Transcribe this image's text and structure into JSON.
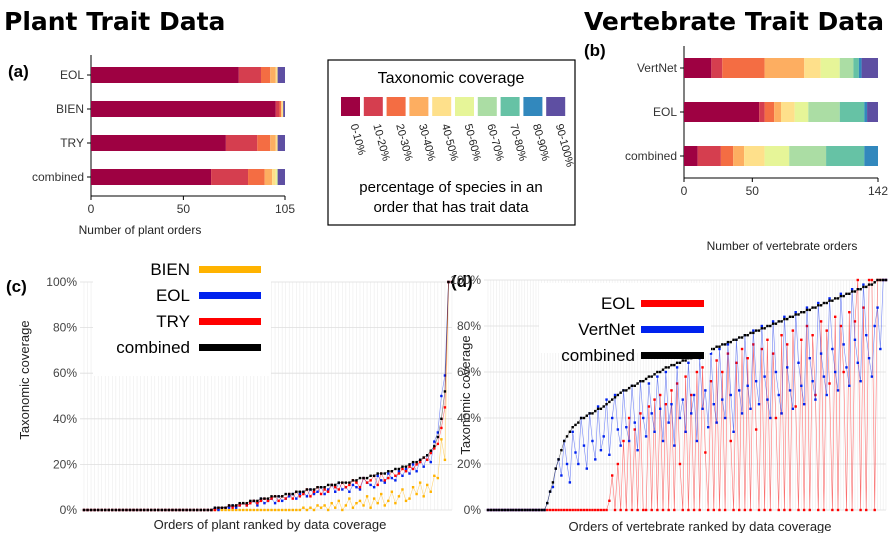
{
  "headings": {
    "plant": "Plant Trait Data",
    "vertebrate": "Vertebrate Trait Data"
  },
  "colors": {
    "scale": [
      "#9e0142",
      "#d53e4f",
      "#f46d43",
      "#fdae61",
      "#fee08b",
      "#e6f598",
      "#abdda4",
      "#66c2a5",
      "#3288bd",
      "#5e4fa2"
    ],
    "BIEN": "#ffb300",
    "EOL": "#ff0000",
    "EOL_d": "#ff0000",
    "EOL_c": "#0022ee",
    "TRY": "#ff0000",
    "VertNet": "#0022ee",
    "combined": "#000000"
  },
  "legend_scale": {
    "title": "Taxonomic coverage",
    "labels": [
      "0-10%",
      "10-20%",
      "20-30%",
      "30-40%",
      "40-50%",
      "50-60%",
      "60-70%",
      "70-80%",
      "80-90%",
      "90-100%"
    ],
    "caption_line1": "percentage of species in an",
    "caption_line2": "order that has trait data"
  },
  "chart_data": [
    {
      "panel": "(a)",
      "type": "bar",
      "orientation": "horizontal",
      "stacked": true,
      "categories": [
        "EOL",
        "BIEN",
        "TRY",
        "combined"
      ],
      "xlabel": "Number of plant orders",
      "xlim": [
        0,
        105
      ],
      "xticks": [
        0,
        50,
        105
      ],
      "segments": [
        [
          80,
          12,
          5,
          3,
          1,
          0,
          0,
          0,
          0,
          4
        ],
        [
          100,
          2,
          1,
          0,
          1,
          0,
          0,
          0,
          0,
          1
        ],
        [
          73,
          17,
          7,
          3,
          1,
          0,
          0,
          0,
          0,
          4
        ],
        [
          65,
          20,
          9,
          4,
          2,
          1,
          0,
          0,
          0,
          4
        ]
      ]
    },
    {
      "panel": "(b)",
      "type": "bar",
      "orientation": "horizontal",
      "stacked": true,
      "categories": [
        "VertNet",
        "EOL",
        "combined"
      ],
      "xlabel": "Number of vertebrate orders",
      "xlim": [
        0,
        142
      ],
      "xticks": [
        0,
        50,
        142
      ],
      "segments": [
        [
          20,
          8,
          31,
          29,
          12,
          14,
          10,
          4,
          2,
          12
        ],
        [
          55,
          4,
          7,
          5,
          10,
          10,
          23,
          18,
          2,
          8
        ],
        [
          10,
          17,
          9,
          8,
          15,
          18,
          27,
          28,
          10,
          0
        ]
      ]
    },
    {
      "panel": "(c)",
      "type": "scatter",
      "connected": true,
      "xlabel": "Orders of plant ranked by data coverage",
      "ylabel": "Taxonomic coverage",
      "ylim": [
        0,
        100
      ],
      "yticks": [
        "0%",
        "20%",
        "40%",
        "60%",
        "80%",
        "100%"
      ],
      "n_orders": 105,
      "series": [
        {
          "name": "BIEN",
          "color_key": "BIEN",
          "values": [
            0,
            0,
            0,
            0,
            0,
            0,
            0,
            0,
            0,
            0,
            0,
            0,
            0,
            0,
            0,
            0,
            0,
            0,
            0,
            0,
            0,
            0,
            0,
            0,
            0,
            0,
            0,
            0,
            0,
            0,
            0,
            0,
            0,
            0,
            0,
            0,
            0,
            0,
            0,
            0,
            0,
            0,
            0,
            0,
            0,
            0,
            0,
            0,
            0,
            0,
            0,
            0,
            0,
            0,
            0,
            0,
            0,
            0,
            0,
            0,
            0,
            0,
            1,
            0,
            1,
            0,
            2,
            1,
            2,
            0,
            3,
            1,
            4,
            0,
            2,
            5,
            1,
            3,
            4,
            2,
            6,
            1,
            5,
            3,
            7,
            2,
            4,
            8,
            3,
            6,
            9,
            4,
            5,
            10,
            7,
            12,
            6,
            11,
            8,
            15,
            14,
            31,
            22,
            100,
            100
          ]
        },
        {
          "name": "EOL",
          "color_key": "EOL_c",
          "values": [
            0,
            0,
            0,
            0,
            0,
            0,
            0,
            0,
            0,
            0,
            0,
            0,
            0,
            0,
            0,
            0,
            0,
            0,
            0,
            0,
            0,
            0,
            0,
            0,
            0,
            0,
            0,
            0,
            0,
            0,
            0,
            0,
            0,
            0,
            0,
            0,
            0,
            1,
            0,
            1,
            1,
            1,
            2,
            1,
            2,
            3,
            2,
            3,
            4,
            2,
            5,
            3,
            4,
            5,
            3,
            6,
            4,
            5,
            6,
            7,
            5,
            7,
            8,
            6,
            9,
            7,
            8,
            10,
            7,
            9,
            11,
            8,
            12,
            9,
            10,
            8,
            11,
            10,
            9,
            14,
            12,
            11,
            10,
            15,
            13,
            12,
            16,
            14,
            13,
            17,
            15,
            18,
            16,
            20,
            17,
            22,
            19,
            24,
            21,
            30,
            34,
            50,
            59,
            100,
            100
          ]
        },
        {
          "name": "TRY",
          "color_key": "TRY",
          "values": [
            0,
            0,
            0,
            0,
            0,
            0,
            0,
            0,
            0,
            0,
            0,
            0,
            0,
            0,
            0,
            0,
            0,
            0,
            0,
            0,
            0,
            0,
            0,
            0,
            0,
            0,
            0,
            0,
            0,
            0,
            0,
            0,
            0,
            0,
            0,
            0,
            0,
            0,
            1,
            1,
            1,
            2,
            1,
            2,
            2,
            3,
            2,
            3,
            4,
            3,
            4,
            5,
            4,
            5,
            6,
            4,
            6,
            5,
            7,
            5,
            8,
            6,
            7,
            9,
            6,
            8,
            10,
            7,
            9,
            8,
            11,
            10,
            9,
            12,
            10,
            11,
            13,
            12,
            10,
            14,
            12,
            13,
            15,
            11,
            16,
            13,
            14,
            17,
            15,
            16,
            18,
            17,
            19,
            18,
            20,
            21,
            23,
            22,
            25,
            27,
            29,
            36,
            45,
            100,
            100
          ]
        },
        {
          "name": "combined",
          "color_key": "combined",
          "values": [
            0,
            0,
            0,
            0,
            0,
            0,
            0,
            0,
            0,
            0,
            0,
            0,
            0,
            0,
            0,
            0,
            0,
            0,
            0,
            0,
            0,
            0,
            0,
            0,
            0,
            0,
            0,
            0,
            0,
            0,
            0,
            0,
            0,
            0,
            0,
            0,
            0,
            1,
            1,
            1,
            1,
            2,
            2,
            2,
            3,
            3,
            3,
            4,
            4,
            4,
            5,
            5,
            5,
            6,
            6,
            6,
            6,
            7,
            7,
            7,
            8,
            8,
            8,
            9,
            9,
            9,
            10,
            10,
            10,
            11,
            11,
            11,
            12,
            12,
            12,
            12,
            13,
            13,
            14,
            14,
            14,
            15,
            15,
            16,
            16,
            16,
            17,
            17,
            18,
            18,
            19,
            19,
            20,
            21,
            21,
            22,
            23,
            24,
            26,
            28,
            32,
            40,
            52,
            100,
            100
          ]
        }
      ]
    },
    {
      "panel": "(d)",
      "type": "scatter",
      "connected": true,
      "xlabel": "Orders of vertebrate ranked by data coverage",
      "ylabel": "Taxonomic coverage",
      "ylim": [
        0,
        100
      ],
      "yticks": [
        "0%",
        "20%",
        "40%",
        "60%",
        "80%",
        "100%"
      ],
      "n_orders": 142,
      "series": [
        {
          "name": "EOL",
          "color_key": "EOL_d",
          "values": [
            0,
            0,
            0,
            0,
            0,
            0,
            0,
            0,
            0,
            0,
            0,
            0,
            0,
            0,
            0,
            0,
            0,
            0,
            0,
            0,
            0,
            0,
            0,
            0,
            0,
            0,
            0,
            0,
            0,
            0,
            0,
            0,
            0,
            0,
            0,
            0,
            0,
            0,
            0,
            0,
            0,
            0,
            0,
            4,
            15,
            0,
            20,
            0,
            30,
            0,
            40,
            0,
            35,
            0,
            42,
            0,
            0,
            45,
            0,
            48,
            0,
            50,
            0,
            46,
            0,
            52,
            0,
            55,
            20,
            0,
            58,
            0,
            50,
            0,
            60,
            0,
            62,
            25,
            0,
            56,
            0,
            65,
            0,
            60,
            0,
            68,
            30,
            0,
            64,
            0,
            70,
            0,
            66,
            0,
            72,
            35,
            0,
            70,
            0,
            74,
            0,
            68,
            40,
            0,
            76,
            0,
            72,
            0,
            78,
            45,
            0,
            74,
            0,
            80,
            0,
            76,
            50,
            0,
            82,
            0,
            78,
            55,
            0,
            84,
            0,
            80,
            60,
            0,
            86,
            0,
            82,
            100,
            0,
            88,
            0,
            100,
            100,
            0,
            100,
            100,
            100,
            100
          ]
        },
        {
          "name": "VertNet",
          "color_key": "VertNet",
          "values": [
            0,
            0,
            0,
            0,
            0,
            0,
            0,
            0,
            0,
            0,
            0,
            0,
            0,
            0,
            0,
            0,
            0,
            0,
            0,
            0,
            0,
            3,
            8,
            10,
            18,
            22,
            15,
            30,
            20,
            12,
            34,
            25,
            20,
            40,
            28,
            18,
            42,
            30,
            22,
            45,
            26,
            32,
            48,
            24,
            40,
            50,
            35,
            28,
            52,
            36,
            30,
            54,
            38,
            26,
            56,
            40,
            32,
            55,
            42,
            34,
            58,
            44,
            30,
            60,
            38,
            46,
            28,
            62,
            40,
            48,
            34,
            64,
            42,
            50,
            30,
            66,
            44,
            52,
            36,
            68,
            46,
            38,
            70,
            48,
            40,
            72,
            50,
            34,
            74,
            52,
            42,
            76,
            54,
            44,
            78,
            56,
            46,
            80,
            58,
            48,
            40,
            82,
            60,
            50,
            42,
            84,
            62,
            52,
            44,
            86,
            64,
            54,
            46,
            88,
            66,
            56,
            48,
            90,
            68,
            58,
            50,
            92,
            70,
            60,
            52,
            94,
            72,
            62,
            54,
            96,
            74,
            64,
            56,
            98,
            76,
            66,
            58,
            80,
            88,
            70,
            100,
            100
          ]
        },
        {
          "name": "combined",
          "color_key": "combined",
          "values": [
            0,
            0,
            0,
            0,
            0,
            0,
            0,
            0,
            0,
            0,
            0,
            0,
            0,
            0,
            0,
            0,
            0,
            0,
            0,
            0,
            0,
            3,
            8,
            12,
            18,
            22,
            26,
            30,
            32,
            34,
            36,
            37,
            38,
            40,
            40,
            41,
            42,
            42,
            43,
            44,
            44,
            45,
            46,
            47,
            48,
            49,
            50,
            51,
            52,
            52,
            53,
            54,
            54,
            55,
            56,
            56,
            57,
            58,
            58,
            59,
            60,
            60,
            61,
            62,
            62,
            63,
            63,
            64,
            64,
            65,
            65,
            66,
            66,
            67,
            67,
            68,
            68,
            69,
            69,
            70,
            70,
            71,
            71,
            72,
            72,
            73,
            73,
            74,
            74,
            75,
            75,
            76,
            76,
            77,
            77,
            78,
            78,
            79,
            79,
            80,
            80,
            81,
            81,
            82,
            82,
            83,
            83,
            84,
            84,
            85,
            85,
            86,
            86,
            87,
            87,
            88,
            88,
            89,
            89,
            90,
            90,
            91,
            91,
            92,
            92,
            93,
            93,
            94,
            94,
            95,
            95,
            96,
            96,
            97,
            97,
            98,
            98,
            99,
            100,
            100,
            100,
            100
          ]
        }
      ]
    }
  ],
  "legends": {
    "c": [
      "BIEN",
      "EOL",
      "TRY",
      "combined"
    ],
    "d": [
      "EOL",
      "VertNet",
      "combined"
    ]
  }
}
